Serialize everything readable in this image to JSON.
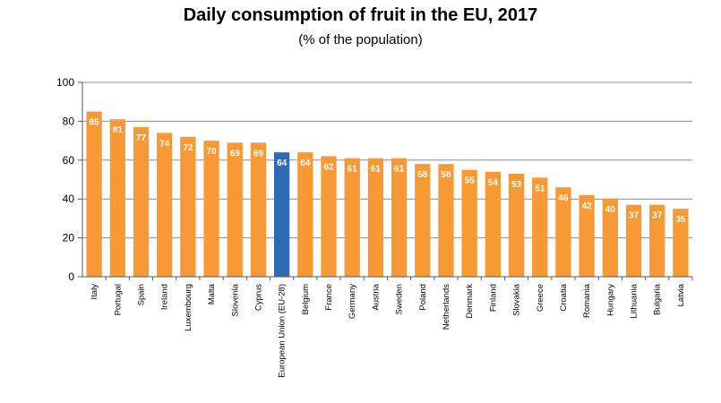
{
  "chart_data": {
    "type": "bar",
    "title": "Daily consumption of fruit in the EU, 2017",
    "subtitle": "(% of the population)",
    "xlabel": "",
    "ylabel": "",
    "ylim": [
      0,
      100
    ],
    "yticks": [
      0,
      20,
      40,
      60,
      80,
      100
    ],
    "grid": true,
    "categories": [
      "Italy",
      "Portugal",
      "Spain",
      "Ireland",
      "Luxembourg",
      "Malta",
      "Slovenia",
      "Cyprus",
      "European Union (EU-28)",
      "Belgium",
      "France",
      "Germany",
      "Austria",
      "Sweden",
      "Poland",
      "Netherlands",
      "Denmark",
      "Finland",
      "Slovakia",
      "Greece",
      "Croatia",
      "Romania",
      "Hungary",
      "Lithuania",
      "Bulgaria",
      "Latvia"
    ],
    "values": [
      85,
      81,
      77,
      74,
      72,
      70,
      69,
      69,
      64,
      64,
      62,
      61,
      61,
      61,
      58,
      58,
      55,
      54,
      53,
      51,
      46,
      42,
      40,
      37,
      37,
      35
    ],
    "colors": {
      "default": "#F79A36",
      "highlight": "#2E6BB0",
      "label": "#ffffff",
      "grid": "#8c8c8c",
      "text": "#000000"
    },
    "highlight_category": "European Union (EU-28)"
  }
}
